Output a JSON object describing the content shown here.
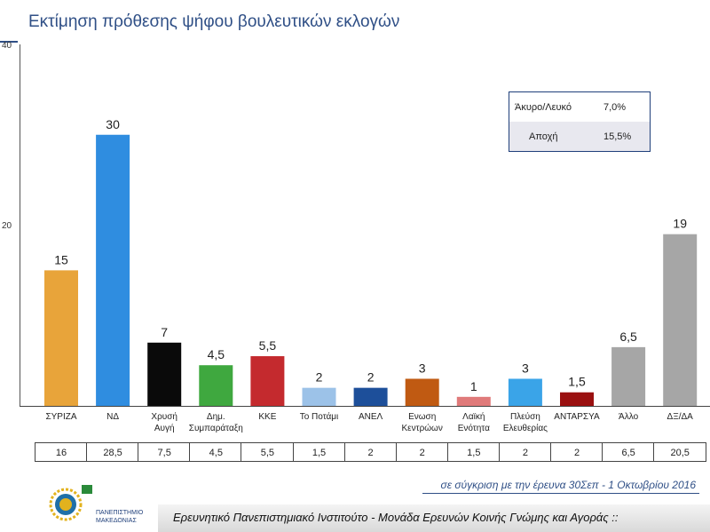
{
  "title": "Εκτίμηση πρόθεσης ψήφου βουλευτικών εκλογών",
  "chart_data": {
    "type": "bar",
    "categories": [
      "ΣΥΡΙΖΑ",
      "ΝΔ",
      "Χρυσή Αυγή",
      "Δημ. Συμπαράταξη",
      "ΚΚΕ",
      "Το Ποτάμι",
      "ΑΝΕΛ",
      "Ενωση Κεντρώων",
      "Λαϊκή Ενότητα",
      "Πλεύση Ελευθερίας",
      "ΑΝΤΑΡΣΥΑ",
      "Άλλο",
      "ΔΞ/ΔΑ"
    ],
    "category_lines": [
      [
        "ΣΥΡΙΖΑ"
      ],
      [
        "ΝΔ"
      ],
      [
        "Χρυσή",
        "Αυγή"
      ],
      [
        "Δημ.",
        "Συμπαράταξη"
      ],
      [
        "ΚΚΕ"
      ],
      [
        "Το Ποτάμι"
      ],
      [
        "ΑΝΕΛ"
      ],
      [
        "Ενωση",
        "Κεντρώων"
      ],
      [
        "Λαϊκή",
        "Ενότητα"
      ],
      [
        "Πλεύση",
        "Ελευθερίας"
      ],
      [
        "ΑΝΤΑΡΣΥΑ"
      ],
      [
        "Άλλο"
      ],
      [
        "ΔΞ/ΔΑ"
      ]
    ],
    "values": [
      15,
      30,
      7,
      4.5,
      5.5,
      2,
      2,
      3,
      1,
      3,
      1.5,
      6.5,
      19
    ],
    "value_labels": [
      "15",
      "30",
      "7",
      "4,5",
      "5,5",
      "2",
      "2",
      "3",
      "1",
      "3",
      "1,5",
      "6,5",
      "19"
    ],
    "colors": [
      "#e8a43a",
      "#2f8de0",
      "#0a0a0a",
      "#3fa83f",
      "#c42a2e",
      "#9cc2e8",
      "#1d4f9a",
      "#c05a12",
      "#e07a7a",
      "#3aa4e8",
      "#9a1010",
      "#a6a6a6",
      "#a6a6a6"
    ],
    "previous": [
      "16",
      "28,5",
      "7,5",
      "4,5",
      "5,5",
      "1,5",
      "2",
      "2",
      "1,5",
      "2",
      "2",
      "6,5",
      "20,5"
    ],
    "ylim": [
      0,
      40
    ],
    "yticks": [
      "20",
      "40"
    ],
    "grid": false
  },
  "legend": {
    "rows": [
      {
        "label": "Άκυρο/Λευκό",
        "value": "7,0%"
      },
      {
        "label": "Αποχή",
        "value": "15,5%"
      }
    ]
  },
  "compare_note": "σε σύγκριση με την έρευνα 30Σεπ - 1 Οκτωβρίου 2016",
  "footer": "Ερευνητικό Πανεπιστημιακό Ινστιτούτο - Μονάδα Ερευνών Κοινής Γνώμης και Αγοράς ::",
  "logo": {
    "line1": "ΠΑΝΕΠΙΣΤΗΜΙΟ",
    "line2": "ΜΑΚΕΔΟΝΙΑΣ"
  }
}
